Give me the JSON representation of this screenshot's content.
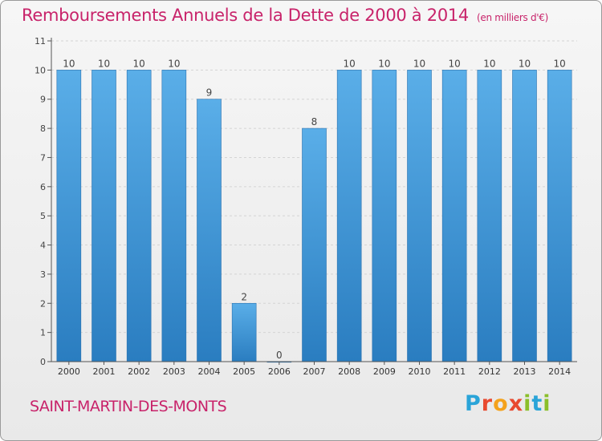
{
  "header": {
    "title": "Remboursements Annuels de la Dette de 2000 à 2014",
    "unit": "(en milliers d'€)"
  },
  "footer": {
    "commune": "SAINT-MARTIN-DES-MONTS",
    "brand": "Proxiti"
  },
  "colors": {
    "accent": "#c8236a",
    "bar_light": "#5aaee8",
    "bar_dark": "#2a7dc0"
  },
  "chart_data": {
    "type": "bar",
    "title": "Remboursements Annuels de la Dette de 2000 à 2014",
    "subtitle": "(en milliers d'€)",
    "xlabel": "",
    "ylabel": "",
    "categories": [
      "2000",
      "2001",
      "2002",
      "2003",
      "2004",
      "2005",
      "2006",
      "2007",
      "2008",
      "2009",
      "2010",
      "2011",
      "2012",
      "2013",
      "2014"
    ],
    "values": [
      10,
      10,
      10,
      10,
      9,
      2,
      0,
      8,
      10,
      10,
      10,
      10,
      10,
      10,
      10
    ],
    "ylim": [
      0,
      11
    ],
    "yticks": [
      0,
      1,
      2,
      3,
      4,
      5,
      6,
      7,
      8,
      9,
      10,
      11
    ],
    "grid": true,
    "legend": "none"
  }
}
